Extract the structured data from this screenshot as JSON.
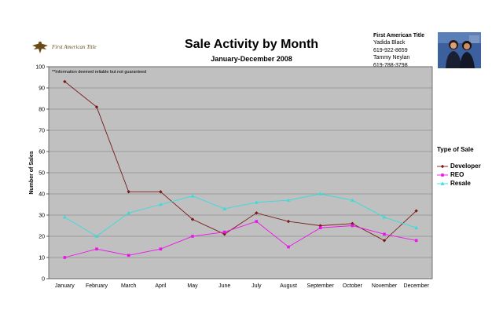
{
  "logo": {
    "text": "First American Title",
    "icon": "eagle-icon"
  },
  "header": {
    "title": "Sale Activity by Month",
    "subtitle": "January-December 2008"
  },
  "contact": {
    "company": "First American Title",
    "lines": [
      "Yadida Black",
      "619-922-8659",
      "Tammy Neylan",
      "619-788-3798"
    ]
  },
  "colors": {
    "plot_background": "#c0c0c0",
    "developer": "#7a1a1a",
    "reo": "#ee11ee",
    "resale": "#33dddd"
  },
  "chart_data": {
    "type": "line",
    "title": "Sale Activity by Month",
    "subtitle": "January-December 2008",
    "note": "**Information deemed reliable but not guaranteed",
    "ylabel": "Number of Sales",
    "xlabel": "",
    "ylim": [
      0,
      100
    ],
    "yticks": [
      0,
      10,
      20,
      30,
      40,
      50,
      60,
      70,
      80,
      90,
      100
    ],
    "grid": true,
    "legend_title": "Type of Sale",
    "legend_position": "right",
    "categories": [
      "January",
      "February",
      "March",
      "April",
      "May",
      "June",
      "July",
      "August",
      "September",
      "October",
      "November",
      "December"
    ],
    "series": [
      {
        "name": "Developer",
        "color": "#7a1a1a",
        "marker": "diamond",
        "values": [
          93,
          81,
          41,
          41,
          28,
          21,
          31,
          27,
          25,
          26,
          18,
          32
        ]
      },
      {
        "name": "REO",
        "color": "#ee11ee",
        "marker": "square",
        "values": [
          10,
          14,
          11,
          14,
          20,
          22,
          27,
          15,
          24,
          25,
          21,
          18
        ]
      },
      {
        "name": "Resale",
        "color": "#33dddd",
        "marker": "triangle",
        "values": [
          29,
          20,
          31,
          35,
          39,
          33,
          36,
          37,
          40,
          37,
          29,
          24
        ]
      }
    ]
  }
}
